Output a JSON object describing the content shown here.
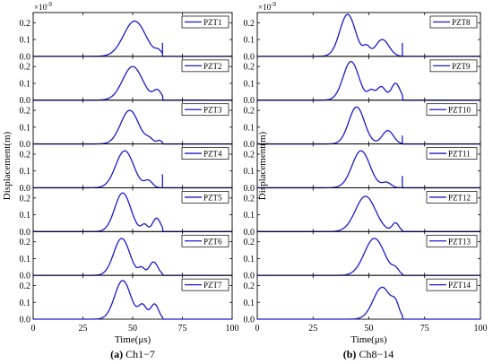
{
  "chart_data": [
    {
      "type": "line",
      "caption": "(a) Ch1−7",
      "caption_bold": "(a)",
      "caption_rest": " Ch1−7",
      "xlabel": "Time(μs)",
      "ylabel": "Displacement(m)",
      "y_multiplier": "×10",
      "y_multiplier_exp": "-9",
      "xlim": [
        0,
        100
      ],
      "xticks": [
        0,
        25,
        50,
        75,
        100
      ],
      "ylim": [
        0,
        0.25
      ],
      "yticks": [
        "0.0",
        "0.1",
        "0.2"
      ],
      "line_color": "#1a1acc",
      "grid": false,
      "legend_position": "top-right",
      "series": [
        {
          "name": "PZT1",
          "peaks": [
            {
              "t": 51,
              "a": 0.21,
              "w": 5.5
            },
            {
              "t": 63,
              "a": 0.025,
              "w": 1.5
            }
          ],
          "end": 65,
          "end_spike": 0.08
        },
        {
          "name": "PZT2",
          "peaks": [
            {
              "t": 50,
              "a": 0.2,
              "w": 5
            },
            {
              "t": 62.5,
              "a": 0.055,
              "w": 2
            }
          ],
          "end": 65,
          "end_spike": 0.0
        },
        {
          "name": "PZT3",
          "peaks": [
            {
              "t": 48.5,
              "a": 0.2,
              "w": 4.5
            },
            {
              "t": 58.5,
              "a": 0.025,
              "w": 2
            },
            {
              "t": 63.5,
              "a": 0.02,
              "w": 1.2
            }
          ],
          "end": 65,
          "end_spike": 0.0
        },
        {
          "name": "PZT4",
          "peaks": [
            {
              "t": 46,
              "a": 0.22,
              "w": 4.5
            },
            {
              "t": 58,
              "a": 0.04,
              "w": 2
            }
          ],
          "end": 65,
          "end_spike": 0.08
        },
        {
          "name": "PZT5",
          "peaks": [
            {
              "t": 45,
              "a": 0.23,
              "w": 4
            },
            {
              "t": 56,
              "a": 0.04,
              "w": 1.5
            },
            {
              "t": 62,
              "a": 0.08,
              "w": 2
            }
          ],
          "end": 65,
          "end_spike": 0.0
        },
        {
          "name": "PZT6",
          "peaks": [
            {
              "t": 44.5,
              "a": 0.22,
              "w": 4
            },
            {
              "t": 54.5,
              "a": 0.04,
              "w": 1.5
            },
            {
              "t": 60.5,
              "a": 0.08,
              "w": 2.2
            }
          ],
          "end": 65,
          "end_spike": 0.0
        },
        {
          "name": "PZT7",
          "peaks": [
            {
              "t": 45,
              "a": 0.23,
              "w": 4
            },
            {
              "t": 55,
              "a": 0.08,
              "w": 2
            },
            {
              "t": 61,
              "a": 0.09,
              "w": 2
            }
          ],
          "end": 65,
          "end_spike": 0.0
        }
      ]
    },
    {
      "type": "line",
      "caption": "(b) Ch8−14",
      "caption_bold": "(b)",
      "caption_rest": " Ch8−14",
      "xlabel": "Time(μs)",
      "ylabel": "Displacement(m)",
      "y_multiplier": "×10",
      "y_multiplier_exp": "-9",
      "xlim": [
        0,
        100
      ],
      "xticks": [
        0,
        25,
        50,
        75,
        100
      ],
      "ylim": [
        0,
        0.25
      ],
      "yticks": [
        "0.0",
        "0.1",
        "0.2"
      ],
      "line_color": "#1a1acc",
      "grid": false,
      "legend_position": "top-right",
      "series": [
        {
          "name": "PZT8",
          "peaks": [
            {
              "t": 40.5,
              "a": 0.25,
              "w": 3.5
            },
            {
              "t": 49,
              "a": 0.05,
              "w": 1.5
            },
            {
              "t": 56,
              "a": 0.1,
              "w": 3
            }
          ],
          "end": 65,
          "end_spike": 0.08
        },
        {
          "name": "PZT9",
          "peaks": [
            {
              "t": 42,
              "a": 0.23,
              "w": 3.5
            },
            {
              "t": 51,
              "a": 0.05,
              "w": 1.5
            },
            {
              "t": 55.5,
              "a": 0.08,
              "w": 2
            },
            {
              "t": 62,
              "a": 0.1,
              "w": 2
            }
          ],
          "end": 65,
          "end_spike": 0.0
        },
        {
          "name": "PZT10",
          "peaks": [
            {
              "t": 44.5,
              "a": 0.22,
              "w": 3.5
            },
            {
              "t": 58.5,
              "a": 0.08,
              "w": 2.5
            }
          ],
          "end": 65,
          "end_spike": 0.05
        },
        {
          "name": "PZT11",
          "peaks": [
            {
              "t": 46.5,
              "a": 0.22,
              "w": 4
            },
            {
              "t": 58,
              "a": 0.03,
              "w": 2
            }
          ],
          "end": 65,
          "end_spike": 0.07
        },
        {
          "name": "PZT12",
          "peaks": [
            {
              "t": 48.5,
              "a": 0.21,
              "w": 4.5
            },
            {
              "t": 62,
              "a": 0.05,
              "w": 1.5
            }
          ],
          "end": 65,
          "end_spike": 0.0
        },
        {
          "name": "PZT13",
          "peaks": [
            {
              "t": 52.5,
              "a": 0.22,
              "w": 4.5
            },
            {
              "t": 62,
              "a": 0.03,
              "w": 1.5
            }
          ],
          "end": 65,
          "end_spike": 0.0
        },
        {
          "name": "PZT14",
          "peaks": [
            {
              "t": 56,
              "a": 0.19,
              "w": 4
            },
            {
              "t": 62,
              "a": 0.06,
              "w": 1.5
            }
          ],
          "end": 65,
          "end_spike": 0.0
        }
      ]
    }
  ]
}
